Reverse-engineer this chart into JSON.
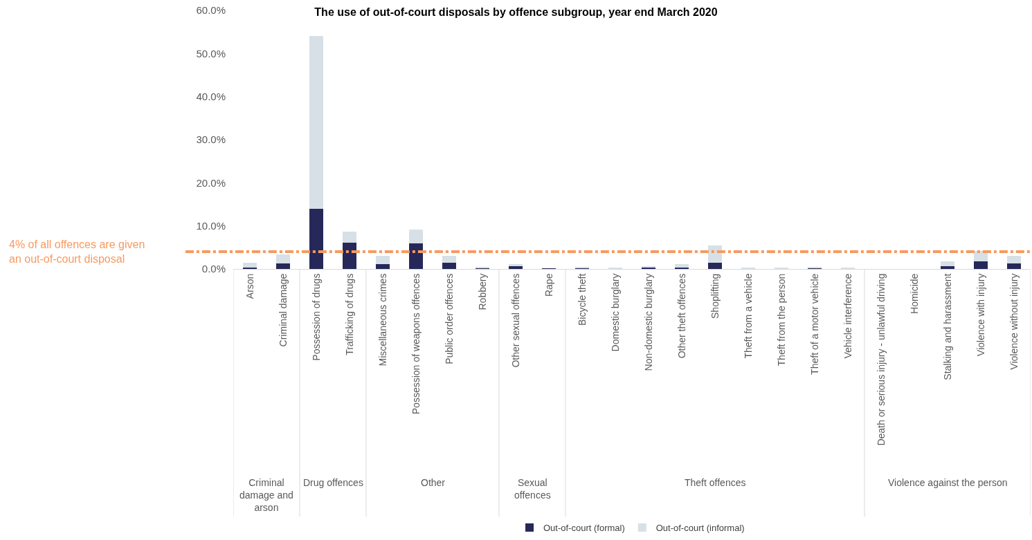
{
  "chart_data": {
    "type": "bar",
    "title": "The use of out-of-court disposals by offence subgroup, year end March 2020",
    "categories": [
      "Arson",
      "Criminal damage",
      "Possession of drugs",
      "Trafficking of drugs",
      "Miscellaneous crimes",
      "Possession of weapons offences",
      "Public order offences",
      "Robbery",
      "Other sexual offences",
      "Rape",
      "Bicycle theft",
      "Domestic burglary",
      "Non-domestic burglary",
      "Other theft offences",
      "Shoplifting",
      "Theft from a vehicle",
      "Theft from the person",
      "Theft of a motor vehicle",
      "Vehicle interference",
      "Death or serious injury - unlawful driving",
      "Homicide",
      "Stalking and harassment",
      "Violence with injury",
      "Violence without injury"
    ],
    "series": [
      {
        "name": "Out-of-court (formal)",
        "color": "#262859",
        "values": [
          0.4,
          1.3,
          14.0,
          6.1,
          1.2,
          5.9,
          1.4,
          0.2,
          0.6,
          0.1,
          0.1,
          null,
          0.3,
          0.3,
          1.5,
          null,
          null,
          0.3,
          0,
          0,
          0,
          0.6,
          1.8,
          1.3
        ]
      },
      {
        "name": "Out-of-court (informal)",
        "color": "#d6e0e6",
        "values": [
          1.0,
          2.1,
          40.1,
          2.5,
          1.8,
          3.2,
          1.7,
          0.3,
          0.5,
          0,
          0.4,
          0.3,
          0.4,
          0.9,
          3.9,
          0.2,
          0.3,
          0.2,
          0.2,
          null,
          0,
          1.2,
          2.3,
          1.8
        ]
      }
    ],
    "stacked": true,
    "ylim": [
      0,
      60
    ],
    "yticks": [
      {
        "value": 0,
        "label": "0.0%"
      },
      {
        "value": 10,
        "label": "10.0%"
      },
      {
        "value": 20,
        "label": "20.0%"
      },
      {
        "value": 30,
        "label": "30.0%"
      },
      {
        "value": 40,
        "label": "40.0%"
      },
      {
        "value": 50,
        "label": "50.0%"
      },
      {
        "value": 60,
        "label": "60.0%"
      }
    ],
    "ref_lines": [
      {
        "axis": "y",
        "value": 4,
        "label": "4% of all offences are given an out-of-court disposal",
        "color": "#f79a5f",
        "line_style": "dashdot"
      }
    ],
    "annotations": [
      "Criminal damage and arson",
      "Drug offences",
      "Other",
      "Sexual offences",
      "Theft offences",
      "Violence against the person"
    ],
    "grid": false,
    "legend": "bottom"
  }
}
